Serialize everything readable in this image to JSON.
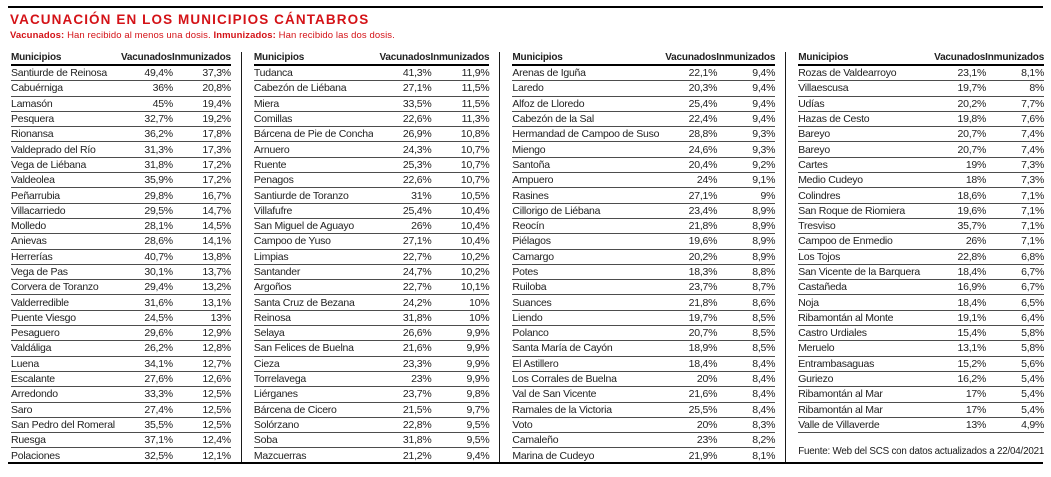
{
  "header": {
    "title": "VACUNACIÓN EN LOS MUNICIPIOS CÁNTABROS",
    "legend": {
      "term1": "Vacunados:",
      "desc1": " Han recibido al menos una dosis. ",
      "term2": "Inmunizados:",
      "desc2": " Han recibido las dos dosis."
    }
  },
  "colors": {
    "accent_red": "#d41217",
    "rule_black": "#000000",
    "row_line": "#4d4d4d"
  },
  "tables": [
    {
      "columns": [
        "Municipios",
        "Vacunados",
        "Inmunizados"
      ],
      "rows": [
        [
          "Santiurde de Reinosa",
          "49,4%",
          "37,3%"
        ],
        [
          "Cabuérniga",
          "36%",
          "20,8%"
        ],
        [
          "Lamasón",
          "45%",
          "19,4%"
        ],
        [
          "Pesquera",
          "32,7%",
          "19,2%"
        ],
        [
          "Rionansa",
          "36,2%",
          "17,8%"
        ],
        [
          "Valdeprado del Río",
          "31,3%",
          "17,3%"
        ],
        [
          "Vega de Liébana",
          "31,8%",
          "17,2%"
        ],
        [
          "Valdeolea",
          "35,9%",
          "17,2%"
        ],
        [
          "Peñarrubia",
          "29,8%",
          "16,7%"
        ],
        [
          "Villacarriedo",
          "29,5%",
          "14,7%"
        ],
        [
          "Molledo",
          "28,1%",
          "14,5%"
        ],
        [
          "Anievas",
          "28,6%",
          "14,1%"
        ],
        [
          "Herrerías",
          "40,7%",
          "13,8%"
        ],
        [
          "Vega de Pas",
          "30,1%",
          "13,7%"
        ],
        [
          "Corvera de Toranzo",
          "29,4%",
          "13,2%"
        ],
        [
          "Valderredible",
          "31,6%",
          "13,1%"
        ],
        [
          "Puente Viesgo",
          "24,5%",
          "13%"
        ],
        [
          "Pesaguero",
          "29,6%",
          "12,9%"
        ],
        [
          "Valdáliga",
          "26,2%",
          "12,8%"
        ],
        [
          "Luena",
          "34,1%",
          "12,7%"
        ],
        [
          "Escalante",
          "27,6%",
          "12,6%"
        ],
        [
          "Arredondo",
          "33,3%",
          "12,5%"
        ],
        [
          "Saro",
          "27,4%",
          "12,5%"
        ],
        [
          "San Pedro del Romeral",
          "35,5%",
          "12,5%"
        ],
        [
          "Ruesga",
          "37,1%",
          "12,4%"
        ],
        [
          "Polaciones",
          "32,5%",
          "12,1%"
        ]
      ]
    },
    {
      "columns": [
        "Municipios",
        "Vacunados",
        "Inmunizados"
      ],
      "rows": [
        [
          "Tudanca",
          "41,3%",
          "11,9%"
        ],
        [
          "Cabezón de Liébana",
          "27,1%",
          "11,5%"
        ],
        [
          "Miera",
          "33,5%",
          "11,5%"
        ],
        [
          "Comillas",
          "22,6%",
          "11,3%"
        ],
        [
          "Bárcena de Pie de Concha",
          "26,9%",
          "10,8%"
        ],
        [
          "Arnuero",
          "24,3%",
          "10,7%"
        ],
        [
          "Ruente",
          "25,3%",
          "10,7%"
        ],
        [
          "Penagos",
          "22,6%",
          "10,7%"
        ],
        [
          "Santiurde de Toranzo",
          "31%",
          "10,5%"
        ],
        [
          "Villafufre",
          "25,4%",
          "10,4%"
        ],
        [
          "San Miguel de Aguayo",
          "26%",
          "10,4%"
        ],
        [
          "Campoo de Yuso",
          "27,1%",
          "10,4%"
        ],
        [
          "Limpias",
          "22,7%",
          "10,2%"
        ],
        [
          "Santander",
          "24,7%",
          "10,2%"
        ],
        [
          "Argoños",
          "22,7%",
          "10,1%"
        ],
        [
          "Santa Cruz de Bezana",
          "24,2%",
          "10%"
        ],
        [
          "Reinosa",
          "31,8%",
          "10%"
        ],
        [
          "Selaya",
          "26,6%",
          "9,9%"
        ],
        [
          "San Felices de Buelna",
          "21,6%",
          "9,9%"
        ],
        [
          "Cieza",
          "23,3%",
          "9,9%"
        ],
        [
          "Torrelavega",
          "23%",
          "9,9%"
        ],
        [
          "Liérganes",
          "23,7%",
          "9,8%"
        ],
        [
          "Bárcena de Cicero",
          "21,5%",
          "9,7%"
        ],
        [
          "Solórzano",
          "22,8%",
          "9,5%"
        ],
        [
          "Soba",
          "31,8%",
          "9,5%"
        ],
        [
          "Mazcuerras",
          "21,2%",
          "9,4%"
        ]
      ]
    },
    {
      "columns": [
        "Municipios",
        "Vacunados",
        "Inmunizados"
      ],
      "rows": [
        [
          "Arenas de Iguña",
          "22,1%",
          "9,4%"
        ],
        [
          "Laredo",
          "20,3%",
          "9,4%"
        ],
        [
          "Alfoz de Lloredo",
          "25,4%",
          "9,4%"
        ],
        [
          "Cabezón de la Sal",
          "22,4%",
          "9,4%"
        ],
        [
          "Hermandad de Campoo de Suso",
          "28,8%",
          "9,3%"
        ],
        [
          "Miengo",
          "24,6%",
          "9,3%"
        ],
        [
          "Santoña",
          "20,4%",
          "9,2%"
        ],
        [
          "Ampuero",
          "24%",
          "9,1%"
        ],
        [
          "Rasines",
          "27,1%",
          "9%"
        ],
        [
          "Cillorigo de Liébana",
          "23,4%",
          "8,9%"
        ],
        [
          "Reocín",
          "21,8%",
          "8,9%"
        ],
        [
          "Piélagos",
          "19,6%",
          "8,9%"
        ],
        [
          "Camargo",
          "20,2%",
          "8,9%"
        ],
        [
          "Potes",
          "18,3%",
          "8,8%"
        ],
        [
          "Ruiloba",
          "23,7%",
          "8,7%"
        ],
        [
          "Suances",
          "21,8%",
          "8,6%"
        ],
        [
          "Liendo",
          "19,7%",
          "8,5%"
        ],
        [
          "Polanco",
          "20,7%",
          "8,5%"
        ],
        [
          "Santa María de Cayón",
          "18,9%",
          "8,5%"
        ],
        [
          "El Astillero",
          "18,4%",
          "8,4%"
        ],
        [
          "Los Corrales de Buelna",
          "20%",
          "8,4%"
        ],
        [
          "Val de San Vicente",
          "21,6%",
          "8,4%"
        ],
        [
          "Ramales de la Victoria",
          "25,5%",
          "8,4%"
        ],
        [
          "Voto",
          "20%",
          "8,3%"
        ],
        [
          "Camaleño",
          "23%",
          "8,2%"
        ],
        [
          "Marina de Cudeyo",
          "21,9%",
          "8,1%"
        ]
      ]
    },
    {
      "columns": [
        "Municipios",
        "Vacunados",
        "Inmunizados"
      ],
      "rows": [
        [
          "Rozas de Valdearroyo",
          "23,1%",
          "8,1%"
        ],
        [
          "Villaescusa",
          "19,7%",
          "8%"
        ],
        [
          "Udías",
          "20,2%",
          "7,7%"
        ],
        [
          "Hazas de Cesto",
          "19,8%",
          "7,6%"
        ],
        [
          "Bareyo",
          "20,7%",
          "7,4%"
        ],
        [
          "Bareyo",
          "20,7%",
          "7,4%"
        ],
        [
          "Cartes",
          "19%",
          "7,3%"
        ],
        [
          "Medio Cudeyo",
          "18%",
          "7,3%"
        ],
        [
          "Colindres",
          "18,6%",
          "7,1%"
        ],
        [
          "San Roque de Riomiera",
          "19,6%",
          "7,1%"
        ],
        [
          "Tresviso",
          "35,7%",
          "7,1%"
        ],
        [
          "Campoo de Enmedio",
          "26%",
          "7,1%"
        ],
        [
          "Los Tojos",
          "22,8%",
          "6,8%"
        ],
        [
          "San Vicente de la Barquera",
          "18,4%",
          "6,7%"
        ],
        [
          "Castañeda",
          "16,9%",
          "6,7%"
        ],
        [
          "Noja",
          "18,4%",
          "6,5%"
        ],
        [
          "Ribamontán al Monte",
          "19,1%",
          "6,4%"
        ],
        [
          "Castro Urdiales",
          "15,4%",
          "5,8%"
        ],
        [
          "Meruelo",
          "13,1%",
          "5,8%"
        ],
        [
          "Entrambasaguas",
          "15,2%",
          "5,6%"
        ],
        [
          "Guriezo",
          "16,2%",
          "5,4%"
        ],
        [
          "Ribamontán al Mar",
          "17%",
          "5,4%"
        ],
        [
          "Ribamontán al Mar",
          "17%",
          "5,4%"
        ],
        [
          "Valle de Villaverde",
          "13%",
          "4,9%"
        ]
      ]
    }
  ],
  "footer": {
    "source": "Fuente: Web del SCS con datos actualizados a 22/04/2021"
  }
}
